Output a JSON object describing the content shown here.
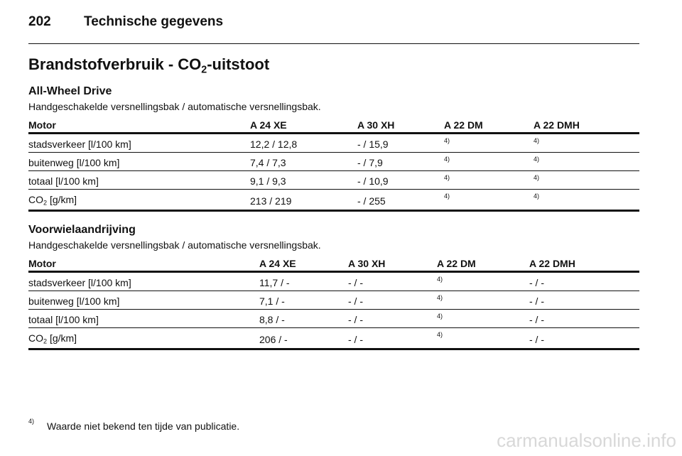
{
  "header": {
    "page_number": "202",
    "title": "Technische gegevens"
  },
  "heading": [
    "Brandstofverbruik - CO",
    "2",
    "-uitstoot"
  ],
  "sections": [
    {
      "title": "All-Wheel Drive",
      "subtitle": "Handgeschakelde versnellingsbak / automatische versnellingsbak.",
      "columns": [
        "Motor",
        "A 24 XE",
        "A 30 XH",
        "A 22 DM",
        "A 22 DMH"
      ],
      "rows": [
        {
          "label": [
            "stadsverkeer [l/100 km]"
          ],
          "values": [
            "12,2 / 12,8",
            "- / 15,9",
            {
              "note": "4)"
            },
            {
              "note": "4)"
            }
          ]
        },
        {
          "label": [
            "buitenweg [l/100 km]"
          ],
          "values": [
            "7,4 / 7,3",
            "- / 7,9",
            {
              "note": "4)"
            },
            {
              "note": "4)"
            }
          ]
        },
        {
          "label": [
            "totaal [l/100 km]"
          ],
          "values": [
            "9,1 / 9,3",
            "- / 10,9",
            {
              "note": "4)"
            },
            {
              "note": "4)"
            }
          ]
        },
        {
          "label": [
            "CO",
            "2",
            " [g/km]"
          ],
          "values": [
            "213 / 219",
            "- / 255",
            {
              "note": "4)"
            },
            {
              "note": "4)"
            }
          ]
        }
      ]
    },
    {
      "title": "Voorwielaandrijving",
      "subtitle": "Handgeschakelde versnellingsbak / automatische versnellingsbak.",
      "columns": [
        "Motor",
        "A 24 XE",
        "A 30 XH",
        "A 22 DM",
        "A 22 DMH"
      ],
      "rows": [
        {
          "label": [
            "stadsverkeer [l/100 km]"
          ],
          "values": [
            "11,7 / -",
            "- / -",
            {
              "note": "4)"
            },
            "- / -"
          ]
        },
        {
          "label": [
            "buitenweg [l/100 km]"
          ],
          "values": [
            "7,1 / -",
            "- / -",
            {
              "note": "4)"
            },
            "- / -"
          ]
        },
        {
          "label": [
            "totaal [l/100 km]"
          ],
          "values": [
            "8,8 / -",
            "- / -",
            {
              "note": "4)"
            },
            "- / -"
          ]
        },
        {
          "label": [
            "CO",
            "2",
            " [g/km]"
          ],
          "values": [
            "206 / -",
            "- / -",
            {
              "note": "4)"
            },
            "- / -"
          ]
        }
      ]
    }
  ],
  "footnote": {
    "marker": "4)",
    "text": "Waarde niet bekend ten tijde van publicatie."
  },
  "watermark": "carmanualsonline.info"
}
